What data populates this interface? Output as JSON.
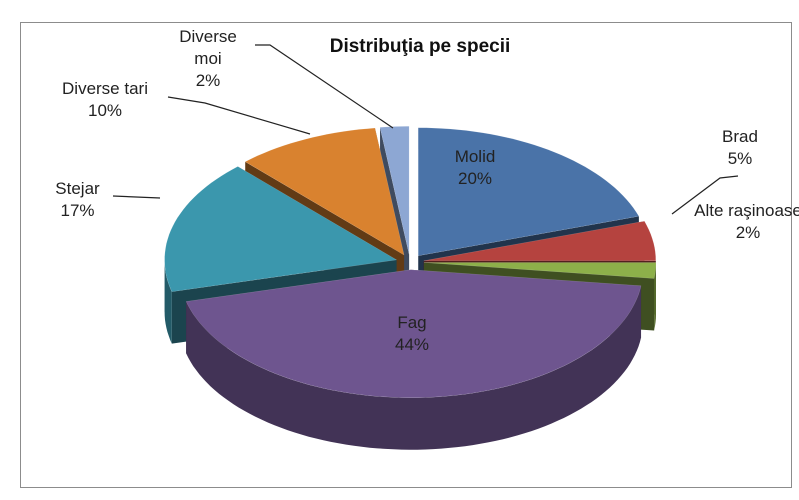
{
  "chart_data": {
    "type": "pie",
    "title": "Distribuţia pe specii",
    "categories": [
      "Molid",
      "Brad",
      "Alte raşinoase",
      "Fag",
      "Stejar",
      "Diverse tari",
      "Diverse moi"
    ],
    "values": [
      20,
      5,
      2,
      44,
      17,
      10,
      2
    ],
    "value_labels": [
      "20%",
      "5%",
      "2%",
      "44%",
      "17%",
      "10%",
      "2%"
    ],
    "colors": [
      "#4a73a8",
      "#b5433f",
      "#8db04a",
      "#6e558f",
      "#3b97ad",
      "#d9822f",
      "#8da7d3"
    ]
  }
}
